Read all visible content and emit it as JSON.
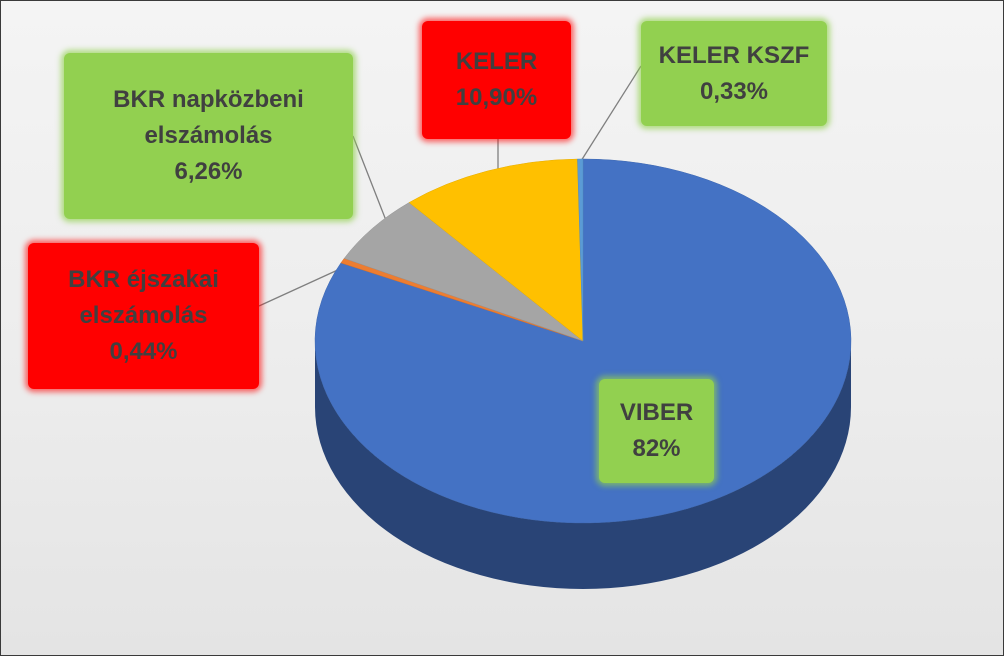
{
  "chart_data": {
    "type": "pie",
    "categories": [
      "VIBER",
      "BKR éjszakai elszámolás",
      "BKR napközbeni elszámolás",
      "KELER",
      "KELER KSZF"
    ],
    "values": [
      82,
      0.44,
      6.26,
      10.9,
      0.33
    ],
    "value_labels": [
      "82%",
      "0,44%",
      "6,26%",
      "10,90%",
      "0,33%"
    ],
    "colors": [
      "#4472c4",
      "#ed7d31",
      "#a5a5a5",
      "#ffc000",
      "#5b9bd5"
    ]
  }
}
